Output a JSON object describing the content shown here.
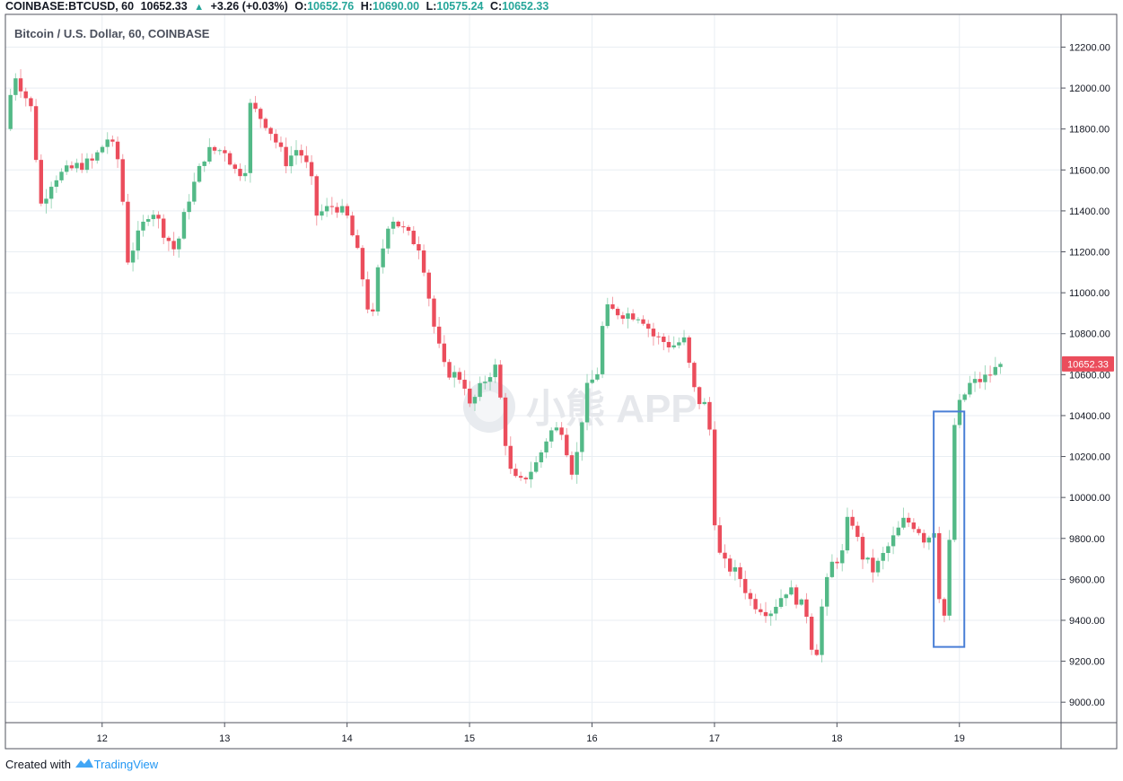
{
  "header": {
    "symbol": "COINBASE:BTCUSD, 60",
    "last": "10652.33",
    "change": "+3.26 (+0.03%)",
    "o_label": "O:",
    "o_value": "10652.76",
    "h_label": "H:",
    "h_value": "10690.00",
    "l_label": "L:",
    "l_value": "10575.24",
    "c_label": "C:",
    "c_value": "10652.33"
  },
  "watermark": "小熊 APP",
  "footer": {
    "prefix": "Created with",
    "brand": "TradingView"
  },
  "colors": {
    "up": "#53b987",
    "down": "#eb4d5c",
    "highlight": "#4a7fd6",
    "grid": "#e9eef3"
  },
  "chart_data": {
    "type": "candlestick",
    "title": "Bitcoin / U.S. Dollar, 60, COINBASE",
    "x_ticks": [
      "12",
      "13",
      "14",
      "15",
      "16",
      "17",
      "18",
      "19"
    ],
    "y_ticks": [
      "12200.00",
      "12000.00",
      "11800.00",
      "11600.00",
      "11400.00",
      "11200.00",
      "11000.00",
      "10800.00",
      "10600.00",
      "10400.00",
      "10200.00",
      "10000.00",
      "9800.00",
      "9600.00",
      "9400.00",
      "9200.00",
      "9000.00"
    ],
    "ylim": [
      8900,
      12360
    ],
    "xlim_days": [
      11.21,
      19.83
    ],
    "last_price_label": "10652.33",
    "highlight_box": {
      "x_from": 18.79,
      "x_to": 19.04,
      "y_from": 9270,
      "y_to": 10420
    },
    "anchors": [
      [
        11.21,
        11800
      ],
      [
        11.28,
        12080
      ],
      [
        11.42,
        11900
      ],
      [
        11.5,
        11430
      ],
      [
        11.6,
        11560
      ],
      [
        11.8,
        11620
      ],
      [
        11.92,
        11640
      ],
      [
        12.05,
        11760
      ],
      [
        12.15,
        11620
      ],
      [
        12.2,
        11150
      ],
      [
        12.4,
        11420
      ],
      [
        12.5,
        11300
      ],
      [
        12.6,
        11200
      ],
      [
        12.7,
        11450
      ],
      [
        12.85,
        11690
      ],
      [
        13.0,
        11700
      ],
      [
        13.1,
        11580
      ],
      [
        13.18,
        11620
      ],
      [
        13.2,
        11920
      ],
      [
        13.35,
        11820
      ],
      [
        13.5,
        11640
      ],
      [
        13.6,
        11710
      ],
      [
        13.7,
        11580
      ],
      [
        13.75,
        11380
      ],
      [
        13.9,
        11430
      ],
      [
        14.0,
        11370
      ],
      [
        14.1,
        11160
      ],
      [
        14.2,
        10830
      ],
      [
        14.25,
        11100
      ],
      [
        14.35,
        11380
      ],
      [
        14.5,
        11280
      ],
      [
        14.6,
        11220
      ],
      [
        14.72,
        10800
      ],
      [
        14.8,
        10620
      ],
      [
        14.95,
        10580
      ],
      [
        15.0,
        10440
      ],
      [
        15.15,
        10600
      ],
      [
        15.22,
        10640
      ],
      [
        15.32,
        10140
      ],
      [
        15.4,
        10060
      ],
      [
        15.55,
        10170
      ],
      [
        15.65,
        10320
      ],
      [
        15.75,
        10340
      ],
      [
        15.85,
        10100
      ],
      [
        15.95,
        10520
      ],
      [
        16.05,
        10620
      ],
      [
        16.1,
        10920
      ],
      [
        16.25,
        10900
      ],
      [
        16.4,
        10890
      ],
      [
        16.5,
        10790
      ],
      [
        16.65,
        10740
      ],
      [
        16.75,
        10770
      ],
      [
        16.85,
        10480
      ],
      [
        16.95,
        10440
      ],
      [
        17.0,
        9900
      ],
      [
        17.05,
        9690
      ],
      [
        17.2,
        9620
      ],
      [
        17.3,
        9490
      ],
      [
        17.45,
        9440
      ],
      [
        17.6,
        9560
      ],
      [
        17.75,
        9440
      ],
      [
        17.82,
        9180
      ],
      [
        17.88,
        9480
      ],
      [
        17.95,
        9670
      ],
      [
        18.05,
        9730
      ],
      [
        18.1,
        9940
      ],
      [
        18.2,
        9720
      ],
      [
        18.3,
        9640
      ],
      [
        18.45,
        9790
      ],
      [
        18.55,
        9890
      ],
      [
        18.65,
        9860
      ],
      [
        18.72,
        9790
      ],
      [
        18.8,
        9850
      ],
      [
        18.85,
        9390
      ],
      [
        18.9,
        9450
      ],
      [
        18.95,
        10330
      ],
      [
        19.0,
        10450
      ],
      [
        19.08,
        10550
      ],
      [
        19.2,
        10580
      ],
      [
        19.35,
        10652.33
      ]
    ]
  }
}
